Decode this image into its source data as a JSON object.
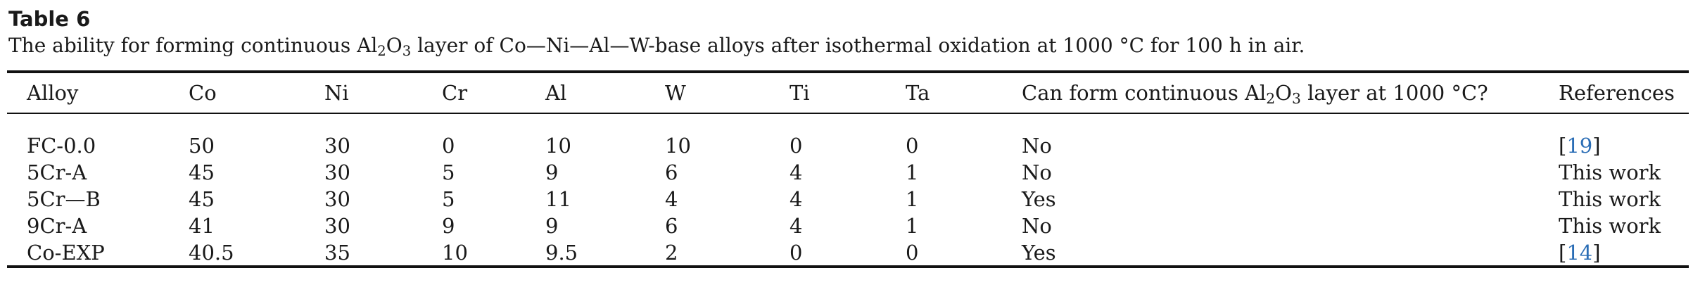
{
  "caption": {
    "label": "Table 6",
    "title_parts": [
      "The ability for forming continuous Al",
      "2",
      "O",
      "3",
      " layer of Co—Ni—Al—W-base alloys after isothermal oxidation at 1000 °C for 100 h in air."
    ]
  },
  "table": {
    "headers": {
      "alloy": "Alloy",
      "co": "Co",
      "ni": "Ni",
      "cr": "Cr",
      "al": "Al",
      "w": "W",
      "ti": "Ti",
      "ta": "Ta",
      "can_form_parts": [
        "Can form continuous Al",
        "2",
        "O",
        "3",
        " layer at 1000 °C?"
      ],
      "references": "References"
    },
    "rows": [
      {
        "alloy": "FC-0.0",
        "co": "50",
        "ni": "30",
        "cr": "0",
        "al": "10",
        "w": "10",
        "ti": "0",
        "ta": "0",
        "can_form": "No",
        "ref_open": "[",
        "ref_num": "19",
        "ref_close": "]"
      },
      {
        "alloy": "5Cr-A",
        "co": "45",
        "ni": "30",
        "cr": "5",
        "al": "9",
        "w": "6",
        "ti": "4",
        "ta": "1",
        "can_form": "No",
        "ref_text": "This work"
      },
      {
        "alloy": "5Cr—B",
        "co": "45",
        "ni": "30",
        "cr": "5",
        "al": "11",
        "w": "4",
        "ti": "4",
        "ta": "1",
        "can_form": "Yes",
        "ref_text": "This work"
      },
      {
        "alloy": "9Cr-A",
        "co": "41",
        "ni": "30",
        "cr": "9",
        "al": "9",
        "w": "6",
        "ti": "4",
        "ta": "1",
        "can_form": "No",
        "ref_text": "This work"
      },
      {
        "alloy": "Co-EXP",
        "co": "40.5",
        "ni": "35",
        "cr": "10",
        "al": "9.5",
        "w": "2",
        "ti": "0",
        "ta": "0",
        "can_form": "Yes",
        "ref_open": "[",
        "ref_num": "14",
        "ref_close": "]"
      }
    ]
  }
}
